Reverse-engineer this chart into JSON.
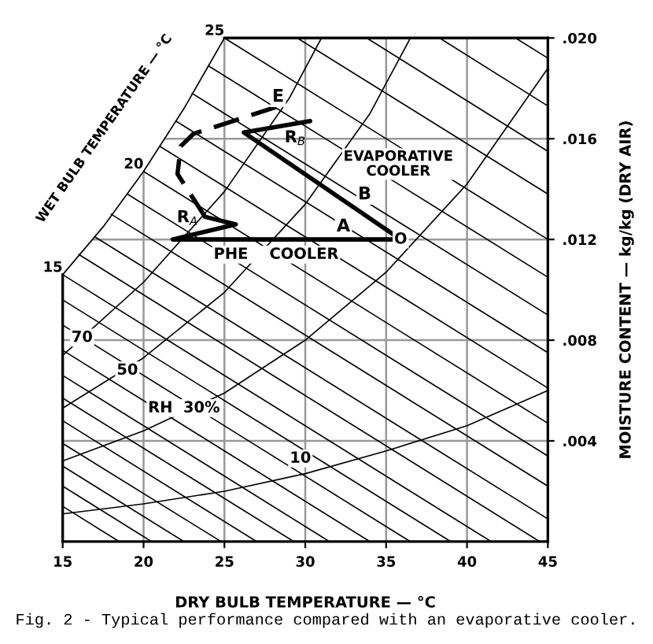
{
  "chart_data": {
    "type": "line",
    "xlabel": "DRY BULB TEMPERATURE — °C",
    "ylabel": "MOISTURE CONTENT — kg/kg (DRY AIR)",
    "xlim": [
      15,
      45
    ],
    "xticks": [
      15,
      20,
      25,
      30,
      35,
      40,
      45
    ],
    "ylim": [
      0,
      0.02
    ],
    "yticks": [
      {
        "value": 0.004,
        "label": ".004"
      },
      {
        "value": 0.008,
        "label": ".008"
      },
      {
        "value": 0.012,
        "label": ".012"
      },
      {
        "value": 0.016,
        "label": ".016"
      },
      {
        "value": 0.02,
        "label": ".020"
      }
    ],
    "grid": true,
    "series": [
      {
        "color": "#000000",
        "x": [
          15,
          17.5,
          20,
          22.5,
          25
        ],
        "values": [
          0.0106,
          0.0125,
          0.0147,
          0.0172,
          0.02
        ]
      },
      {
        "color": "#000000",
        "x": [
          15,
          18.5
        ],
        "values": [
          0.0014,
          0
        ]
      },
      {
        "color": "#000000",
        "x": [
          15,
          20.5
        ],
        "values": [
          0.0022,
          0
        ]
      },
      {
        "color": "#000000",
        "x": [
          15,
          22.5
        ],
        "values": [
          0.003,
          0
        ]
      },
      {
        "color": "#000000",
        "x": [
          15,
          24.8
        ],
        "values": [
          0.0039,
          0
        ]
      },
      {
        "color": "#000000",
        "x": [
          15,
          27
        ],
        "values": [
          0.0048,
          0
        ]
      },
      {
        "color": "#000000",
        "x": [
          15,
          29.3
        ],
        "values": [
          0.0057,
          0
        ]
      },
      {
        "color": "#000000",
        "x": [
          15,
          31.5
        ],
        "values": [
          0.0066,
          0
        ]
      },
      {
        "color": "#000000",
        "x": [
          15,
          34
        ],
        "values": [
          0.0076,
          0
        ]
      },
      {
        "color": "#000000",
        "x": [
          15,
          36.5
        ],
        "values": [
          0.0086,
          0
        ]
      },
      {
        "color": "#000000",
        "x": [
          15,
          39
        ],
        "values": [
          0.0096,
          0
        ]
      },
      {
        "color": "#000000",
        "x": [
          15,
          41.5
        ],
        "values": [
          0.0106,
          0
        ]
      },
      {
        "color": "#000000",
        "x": [
          16,
          44.5
        ],
        "values": [
          0.0114,
          0
        ]
      },
      {
        "color": "#000000",
        "x": [
          17,
          45
        ],
        "values": [
          0.0121,
          0.0009
        ]
      },
      {
        "color": "#000000",
        "x": [
          18,
          45
        ],
        "values": [
          0.013,
          0.0022
        ]
      },
      {
        "color": "#000000",
        "x": [
          19,
          45
        ],
        "values": [
          0.0138,
          0.0034
        ]
      },
      {
        "color": "#000000",
        "x": [
          20,
          45
        ],
        "values": [
          0.0147,
          0.0047
        ]
      },
      {
        "color": "#000000",
        "x": [
          21,
          45
        ],
        "values": [
          0.0157,
          0.0061
        ]
      },
      {
        "color": "#000000",
        "x": [
          22,
          45
        ],
        "values": [
          0.0167,
          0.0075
        ]
      },
      {
        "color": "#000000",
        "x": [
          23,
          45
        ],
        "values": [
          0.0178,
          0.009
        ]
      },
      {
        "color": "#000000",
        "x": [
          24,
          45
        ],
        "values": [
          0.0189,
          0.0105
        ]
      },
      {
        "color": "#000000",
        "x": [
          25,
          45
        ],
        "values": [
          0.02,
          0.012
        ]
      },
      {
        "color": "#000000",
        "x": [
          29.5,
          45
        ],
        "values": [
          0.02,
          0.0138
        ]
      },
      {
        "color": "#000000",
        "x": [
          33.8,
          45
        ],
        "values": [
          0.02,
          0.0155
        ]
      },
      {
        "color": "#000000",
        "x": [
          38.3,
          45
        ],
        "values": [
          0.02,
          0.0173
        ]
      },
      {
        "color": "#000000",
        "x": [
          43,
          45
        ],
        "values": [
          0.02,
          0.0192
        ]
      },
      {
        "color": "#000000",
        "x": [
          15,
          20,
          25,
          29,
          31
        ],
        "values": [
          0.0074,
          0.0103,
          0.0139,
          0.0176,
          0.02
        ]
      },
      {
        "color": "#000000",
        "x": [
          15,
          20,
          25,
          30,
          34,
          36.5
        ],
        "values": [
          0.0053,
          0.0073,
          0.0099,
          0.0134,
          0.017,
          0.02
        ]
      },
      {
        "color": "#000000",
        "x": [
          15,
          20,
          25,
          30,
          35,
          40,
          45
        ],
        "values": [
          0.0032,
          0.0044,
          0.0059,
          0.008,
          0.0107,
          0.0142,
          0.0188
        ]
      },
      {
        "color": "#000000",
        "x": [
          15,
          20,
          25,
          30,
          35,
          40,
          45
        ],
        "values": [
          0.0011,
          0.0015,
          0.002,
          0.0027,
          0.0036,
          0.0046,
          0.006
        ]
      },
      {
        "name": "A",
        "color": "#000000",
        "x": [
          23.8,
          25.7,
          21.8,
          35.9
        ],
        "values": [
          0.0129,
          0.0126,
          0.012,
          0.012
        ]
      },
      {
        "name": "B",
        "color": "#000000",
        "x": [
          30.3,
          26.2,
          35.9
        ],
        "values": [
          0.0167,
          0.01625,
          0.012
        ]
      },
      {
        "name": "E",
        "color": "#000000",
        "line_style": "dashed",
        "x": [
          23.8,
          22.1,
          22.3,
          23.1,
          26.0,
          28.4
        ],
        "values": [
          0.0129,
          0.0146,
          0.0157,
          0.0162,
          0.0168,
          0.0173
        ]
      }
    ],
    "annotations": [
      {
        "text": "15",
        "x": 15,
        "y": 0.0106
      },
      {
        "text": "20",
        "x": 20,
        "y": 0.0147
      },
      {
        "text": "25",
        "x": 25,
        "y": 0.02
      },
      {
        "text": "O",
        "x": 35.9,
        "y": 0.012
      },
      {
        "text": "PHE    COOLER",
        "x": 28.2,
        "y": 0.0114
      },
      {
        "text": "70",
        "x": 16.2,
        "y": 0.0081
      },
      {
        "text": "50",
        "x": 19,
        "y": 0.0068
      },
      {
        "text": "RH  30%",
        "x": 22.5,
        "y": 0.0053
      },
      {
        "text": "10",
        "x": 29.7,
        "y": 0.0033
      },
      "WET BULB TEMPERATURE — °C",
      "R$_{A}$",
      "R$_{B}$",
      "EVAPORATIVE\nCOOLER",
      "Fig. 2 - Typical performance compared with an evaporative cooler."
    ]
  }
}
